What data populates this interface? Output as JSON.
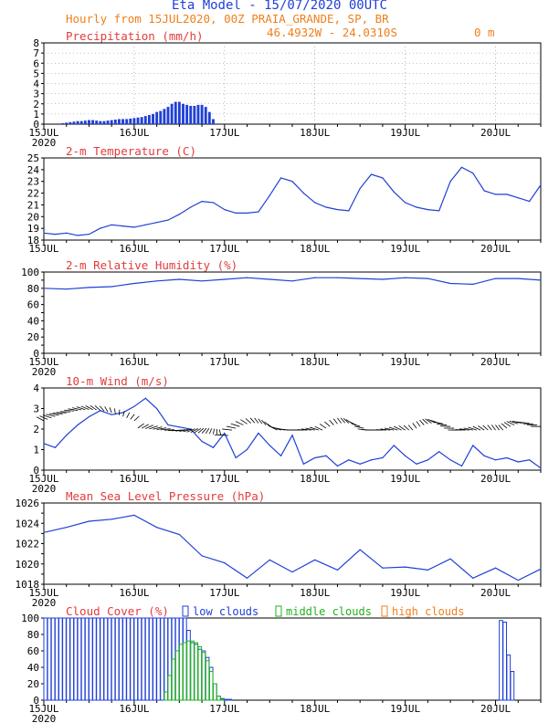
{
  "header": {
    "title": "Eta Model - 15/07/2020 00UTC",
    "subtitle": "Hourly from 15JUL2020, 00Z  PRAIA_GRANDE, SP, BR",
    "location": "46.4932W - 24.0310S",
    "elevation": "0   m"
  },
  "colors": {
    "title": "#1f3fd6",
    "subtitle": "#f07f1c",
    "panel_title": "#e33b3b",
    "series": "#1f3fd6",
    "low_clouds": "#1f3fd6",
    "middle_clouds": "#20b020",
    "high_clouds": "#f07f1c",
    "wind_barb": "#000000"
  },
  "x_axis": {
    "range_hours": [
      0,
      132
    ],
    "ticks": [
      {
        "hour": 0,
        "label": "15JUL"
      },
      {
        "hour": 24,
        "label": "16JUL"
      },
      {
        "hour": 48,
        "label": "17JUL"
      },
      {
        "hour": 72,
        "label": "18JUL"
      },
      {
        "hour": 96,
        "label": "19JUL"
      },
      {
        "hour": 120,
        "label": "20JUL"
      }
    ],
    "year_label": "2020"
  },
  "chart_data": [
    {
      "type": "bar",
      "title": "Precipitation (mm/h)",
      "ylim": [
        0,
        8
      ],
      "yticks": [
        0,
        1,
        2,
        3,
        4,
        5,
        6,
        7,
        8
      ],
      "grid": true,
      "show_year": true,
      "x_hours": [
        5,
        6,
        7,
        8,
        9,
        10,
        11,
        12,
        13,
        14,
        15,
        16,
        17,
        18,
        19,
        20,
        21,
        22,
        23,
        24,
        25,
        26,
        27,
        28,
        29,
        30,
        31,
        32,
        33,
        34,
        35,
        36,
        37,
        38,
        39,
        40,
        41,
        42,
        43,
        44,
        45
      ],
      "values": [
        0.1,
        0.15,
        0.2,
        0.25,
        0.3,
        0.3,
        0.35,
        0.4,
        0.4,
        0.35,
        0.3,
        0.3,
        0.35,
        0.4,
        0.45,
        0.5,
        0.5,
        0.5,
        0.55,
        0.6,
        0.65,
        0.7,
        0.8,
        0.9,
        1.0,
        1.2,
        1.3,
        1.5,
        1.7,
        2.0,
        2.2,
        2.2,
        2.0,
        1.9,
        1.8,
        1.8,
        1.9,
        1.9,
        1.7,
        1.2,
        0.5
      ]
    },
    {
      "type": "line",
      "title": "2-m Temperature (C)",
      "ylim": [
        18,
        25
      ],
      "yticks": [
        18,
        19,
        20,
        21,
        22,
        23,
        24,
        25
      ],
      "grid": false,
      "show_year": false,
      "x": [
        0,
        3,
        6,
        9,
        12,
        15,
        18,
        21,
        24,
        27,
        30,
        33,
        36,
        39,
        42,
        45,
        48,
        51,
        54,
        57,
        60,
        63,
        66,
        69,
        72,
        75,
        78,
        81,
        84,
        87,
        90,
        93,
        96,
        99,
        102,
        105,
        108,
        111,
        114,
        117,
        120,
        123,
        126,
        129,
        132
      ],
      "values": [
        18.6,
        18.5,
        18.6,
        18.4,
        18.5,
        19.0,
        19.3,
        19.2,
        19.1,
        19.3,
        19.5,
        19.7,
        20.2,
        20.8,
        21.3,
        21.2,
        20.6,
        20.3,
        20.3,
        20.4,
        21.8,
        23.3,
        23.0,
        22.0,
        21.2,
        20.8,
        20.6,
        20.5,
        22.4,
        23.6,
        23.3,
        22.1,
        21.2,
        20.8,
        20.6,
        20.5,
        23.0,
        24.2,
        23.7,
        22.2,
        21.9,
        21.9,
        21.6,
        21.3,
        22.7
      ]
    },
    {
      "type": "line",
      "title": "2-m Relative Humidity (%)",
      "ylim": [
        0,
        100
      ],
      "yticks": [
        0,
        10,
        20,
        30,
        40,
        50,
        60,
        70,
        80,
        90,
        100
      ],
      "ytick_labels": [
        0,
        20,
        40,
        60,
        80,
        100
      ],
      "grid": false,
      "show_year": true,
      "x": [
        0,
        6,
        12,
        18,
        24,
        30,
        36,
        42,
        48,
        54,
        60,
        66,
        72,
        78,
        84,
        90,
        96,
        102,
        108,
        114,
        120,
        126,
        132
      ],
      "values": [
        80,
        79,
        81,
        82,
        86,
        89,
        91,
        89,
        91,
        93,
        91,
        89,
        93,
        93,
        92,
        91,
        93,
        92,
        86,
        85,
        92,
        92,
        90
      ]
    },
    {
      "type": "line",
      "title": "10-m Wind (m/s)",
      "ylim": [
        0,
        4
      ],
      "yticks": [
        0,
        1,
        2,
        3,
        4
      ],
      "grid": false,
      "show_year": true,
      "x": [
        0,
        3,
        6,
        9,
        12,
        15,
        18,
        21,
        24,
        27,
        30,
        33,
        36,
        39,
        42,
        45,
        48,
        51,
        54,
        57,
        60,
        63,
        66,
        69,
        72,
        75,
        78,
        81,
        84,
        87,
        90,
        93,
        96,
        99,
        102,
        105,
        108,
        111,
        114,
        117,
        120,
        123,
        126,
        129,
        132
      ],
      "values": [
        1.3,
        1.1,
        1.7,
        2.2,
        2.6,
        2.9,
        2.7,
        2.8,
        3.1,
        3.5,
        3.0,
        2.2,
        2.1,
        2.0,
        1.4,
        1.1,
        1.8,
        0.6,
        1.0,
        1.8,
        1.2,
        0.7,
        1.7,
        0.3,
        0.6,
        0.7,
        0.2,
        0.5,
        0.3,
        0.5,
        0.6,
        1.2,
        0.7,
        0.3,
        0.5,
        0.9,
        0.5,
        0.2,
        1.2,
        0.7,
        0.5,
        0.6,
        0.4,
        0.5,
        0.1
      ]
    },
    {
      "type": "line",
      "title": "Mean Sea Level Pressure (hPa)",
      "ylim": [
        1018,
        1026
      ],
      "yticks": [
        1018,
        1019,
        1020,
        1021,
        1022,
        1023,
        1024,
        1025,
        1026
      ],
      "ytick_labels": [
        1018,
        1020,
        1022,
        1024,
        1026
      ],
      "grid": false,
      "show_year": true,
      "x": [
        0,
        6,
        12,
        18,
        24,
        30,
        36,
        42,
        48,
        54,
        60,
        66,
        72,
        78,
        84,
        90,
        96,
        102,
        108,
        114,
        120,
        126,
        132
      ],
      "values": [
        1023.1,
        1023.6,
        1024.2,
        1024.4,
        1024.8,
        1023.6,
        1022.9,
        1020.8,
        1020.1,
        1018.6,
        1020.4,
        1019.2,
        1020.4,
        1019.4,
        1021.4,
        1019.6,
        1019.7,
        1019.4,
        1020.5,
        1018.6,
        1019.6,
        1018.4,
        1019.5
      ]
    },
    {
      "type": "bar",
      "title": "Cloud Cover (%)",
      "ylim": [
        0,
        100
      ],
      "yticks": [
        0,
        20,
        40,
        60,
        80,
        100
      ],
      "grid": false,
      "show_year": true,
      "legend": [
        "low clouds",
        "middle clouds",
        "high clouds"
      ],
      "x_hours": [
        0,
        1,
        2,
        3,
        4,
        5,
        6,
        7,
        8,
        9,
        10,
        11,
        12,
        13,
        14,
        15,
        16,
        17,
        18,
        19,
        20,
        21,
        22,
        23,
        24,
        25,
        26,
        27,
        28,
        29,
        30,
        31,
        32,
        33,
        34,
        35,
        36,
        37,
        38,
        39,
        40,
        41,
        42,
        43,
        44,
        45,
        46,
        47,
        48,
        49,
        121,
        122,
        123,
        124
      ],
      "low_clouds": [
        100,
        100,
        100,
        100,
        100,
        100,
        100,
        100,
        100,
        100,
        100,
        100,
        100,
        100,
        100,
        100,
        100,
        100,
        100,
        100,
        100,
        100,
        100,
        100,
        100,
        100,
        100,
        100,
        100,
        100,
        100,
        100,
        100,
        100,
        100,
        100,
        100,
        100,
        85,
        70,
        68,
        62,
        60,
        52,
        40,
        20,
        5,
        2,
        1,
        1,
        97,
        95,
        55,
        35
      ],
      "middle_clouds": [
        0,
        0,
        0,
        0,
        0,
        0,
        0,
        0,
        0,
        0,
        0,
        0,
        0,
        0,
        0,
        0,
        0,
        0,
        0,
        0,
        0,
        0,
        0,
        0,
        0,
        0,
        0,
        0,
        0,
        0,
        0,
        0,
        10,
        30,
        50,
        60,
        68,
        70,
        72,
        72,
        70,
        65,
        58,
        48,
        35,
        20,
        5,
        1,
        0,
        0,
        0,
        0,
        0,
        0
      ],
      "high_clouds": [
        0,
        0,
        0,
        0,
        0,
        0,
        0,
        0,
        0,
        0,
        0,
        0,
        0,
        0,
        0,
        0,
        0,
        0,
        0,
        0,
        0,
        0,
        0,
        0,
        0,
        0,
        0,
        0,
        0,
        0,
        0,
        0,
        0,
        0,
        0,
        0,
        0,
        0,
        0,
        0,
        0,
        0,
        0,
        0,
        0,
        0,
        0,
        0,
        0,
        0,
        0,
        0,
        0,
        0
      ]
    }
  ]
}
